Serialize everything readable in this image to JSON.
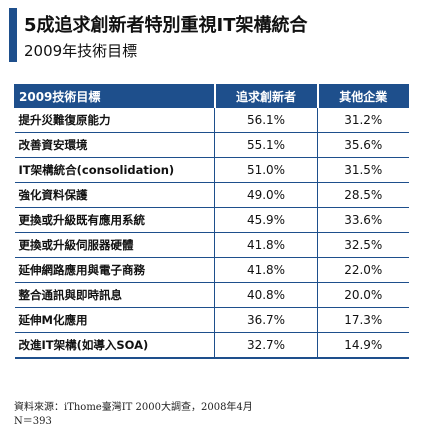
{
  "header": {
    "title": "5成追求創新者特別重視IT架構統合",
    "subtitle": "2009年技術目標"
  },
  "table": {
    "columns": [
      "2009技術目標",
      "追求創新者",
      "其他企業"
    ],
    "rows": [
      [
        "提升災難復原能力",
        "56.1%",
        "31.2%"
      ],
      [
        "改善資安環境",
        "55.1%",
        "35.6%"
      ],
      [
        "IT架構統合(consolidation)",
        "51.0%",
        "31.5%"
      ],
      [
        "強化資料保護",
        "49.0%",
        "28.5%"
      ],
      [
        "更換或升級既有應用系統",
        "45.9%",
        "33.6%"
      ],
      [
        "更換或升級伺服器硬體",
        "41.8%",
        "32.5%"
      ],
      [
        "延伸網路應用與電子商務",
        "41.8%",
        "22.0%"
      ],
      [
        "整合通訊與即時訊息",
        "40.8%",
        "20.0%"
      ],
      [
        "延伸M化應用",
        "36.7%",
        "17.3%"
      ],
      [
        "改進IT架構(如導入SOA)",
        "32.7%",
        "14.9%"
      ]
    ]
  },
  "source": {
    "line1": "資料來源：iThome臺灣IT 2000大調查，2008年4月",
    "line2": "N＝393"
  },
  "colors": {
    "accent": "#1e4f8c",
    "header_text": "#ffffff"
  },
  "chart_data": {
    "type": "table",
    "title": "5成追求創新者特別重視IT架構統合",
    "subtitle": "2009年技術目標",
    "categories": [
      "提升災難復原能力",
      "改善資安環境",
      "IT架構統合(consolidation)",
      "強化資料保護",
      "更換或升級既有應用系統",
      "更換或升級伺服器硬體",
      "延伸網路應用與電子商務",
      "整合通訊與即時訊息",
      "延伸M化應用",
      "改進IT架構(如導入SOA)"
    ],
    "series": [
      {
        "name": "追求創新者",
        "values": [
          56.1,
          55.1,
          51.0,
          49.0,
          45.9,
          41.8,
          41.8,
          40.8,
          36.7,
          32.7
        ]
      },
      {
        "name": "其他企業",
        "values": [
          31.2,
          35.6,
          31.5,
          28.5,
          33.6,
          32.5,
          22.0,
          20.0,
          17.3,
          14.9
        ]
      }
    ],
    "unit": "%"
  }
}
